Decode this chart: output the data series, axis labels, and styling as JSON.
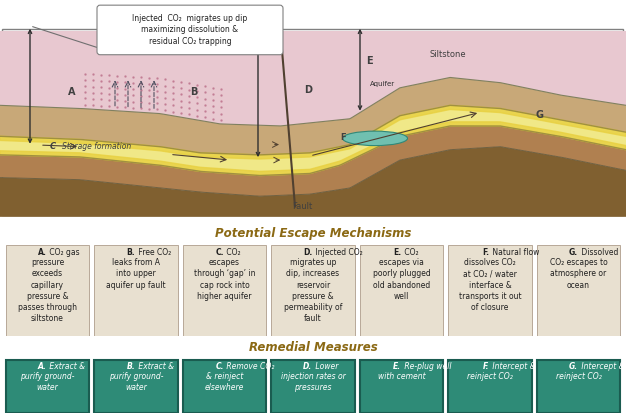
{
  "title": "Potential Escape Mechanisms",
  "title2": "Remedial Measures",
  "escape_texts": [
    "A. CO₂ gas\npressure\nexceeds\ncapillary\npressure &\npasses through\nsiltstone",
    "B. Free CO₂\nleaks from A\ninto upper\naquifer up fault",
    "C. CO₂\nescapes\nthrough ‘gap’ in\ncap rock into\nhigher aquifer",
    "D. Injected CO₂\nmigrates up\ndip, increases\nreservoir\npressure &\npermeability of\nfault",
    "E. CO₂\nescapes via\npoorly plugged\nold abandoned\nwell",
    "F. Natural flow\ndissolves CO₂\nat CO₂ / water\ninterface &\ntransports it out\nof closure",
    "G. Dissolved\nCO₂ escapes to\natmosphere or\nocean"
  ],
  "remedial_texts": [
    "A. Extract &\npurify ground-\nwater",
    "B. Extract &\npurify ground-\nwater",
    "C. Remove CO₂\n& reinject\nelsewhere",
    "D. Lower\ninjection rates or\npressures",
    "E. Re-plug well\nwith cement",
    "F. Intercept &\nreinject CO₂",
    "G. Intercept &\nreinject CO₂"
  ],
  "escape_box_color": "#e8e0d0",
  "escape_box_edge": "#b8a898",
  "remedial_box_color": "#2e8b77",
  "remedial_box_edge": "#1a5c50",
  "title_color": "#8b6914",
  "bg_color": "#ffffff",
  "callout_text": "Injected  CO₂  migrates up dip\nmaximizing dissolution &\nresidual CO₂ trapping",
  "siltstone_color": "#e8c8d0",
  "brown_color": "#c8a878",
  "storage_color": "#f0e888",
  "dark_brown_color": "#a07848",
  "aquifer_color": "#70c0b0",
  "co2_dot_color": "#d090a0"
}
